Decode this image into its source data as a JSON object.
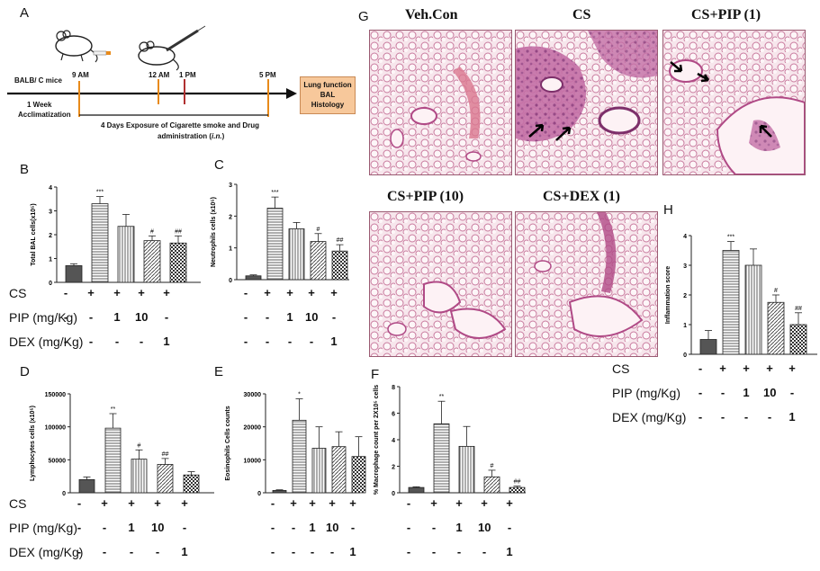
{
  "panels": {
    "A": "A",
    "B": "B",
    "C": "C",
    "D": "D",
    "E": "E",
    "F": "F",
    "G": "G",
    "H": "H"
  },
  "timeline": {
    "mouse_label": "BALB/ C mice",
    "t1": "9 AM",
    "t2": "12 AM",
    "t3": "1 PM",
    "t4": "5 PM",
    "week": "1 Week",
    "accl": "Acclimatization",
    "exposure_line1": "4 Days Exposure of Cigarette smoke and  Drug",
    "exposure_line2_a": "administration (",
    "exposure_line2_route": "i.n.",
    "exposure_line2_b": ")",
    "outcome_line1": "Lung function",
    "outcome_line2": "BAL",
    "outcome_line3": "Histology"
  },
  "conditions": {
    "cs": "CS",
    "pip": "PIP (mg/Kg)",
    "dex": "DEX (mg/Kg)",
    "cs_signs": [
      "-",
      "+",
      "+",
      "+",
      "+"
    ],
    "pip_signs": [
      "-",
      "-",
      "1",
      "10",
      "-"
    ],
    "dex_signs": [
      "-",
      "-",
      "-",
      "-",
      "1"
    ]
  },
  "histology": {
    "titles": [
      "Veh.Con",
      "CS",
      "CS+PIP (1)",
      "CS+PIP (10)",
      "CS+DEX (1)"
    ]
  },
  "colors": {
    "tissue": "#e9b8c8",
    "tissue_dark": "#b04a86",
    "arrow_orange": "#e88a1a",
    "arrow_red": "#b03030",
    "outcome_box": "#f7c89b"
  },
  "chart_data": [
    {
      "id": "B",
      "type": "bar",
      "ylabel": "Total BAL cells(x10⁵)",
      "ylim": [
        0,
        4
      ],
      "yticks": [
        "0",
        "1",
        "2",
        "3",
        "4"
      ],
      "values": [
        0.7,
        3.3,
        2.35,
        1.75,
        1.65
      ],
      "errors": [
        0.08,
        0.3,
        0.5,
        0.2,
        0.3
      ],
      "annotations": [
        "",
        "***",
        "",
        "#",
        "##"
      ]
    },
    {
      "id": "C",
      "type": "bar",
      "ylabel": "Neutrophils cells (x10⁵)",
      "ylim": [
        0,
        3
      ],
      "yticks": [
        "0",
        "1",
        "2",
        "3"
      ],
      "values": [
        0.12,
        2.25,
        1.6,
        1.2,
        0.9
      ],
      "errors": [
        0.03,
        0.35,
        0.2,
        0.25,
        0.2
      ],
      "annotations": [
        "",
        "***",
        "",
        "#",
        "##"
      ]
    },
    {
      "id": "D",
      "type": "bar",
      "ylabel": "Lymphocytes cells (x10⁵)",
      "ylim": [
        0,
        150000
      ],
      "yticks": [
        "0",
        "50000",
        "100000",
        "150000"
      ],
      "values": [
        20000,
        98000,
        51000,
        43000,
        27000
      ],
      "errors": [
        4000,
        22000,
        14000,
        9000,
        5000
      ],
      "annotations": [
        "",
        "**",
        "#",
        "##",
        ""
      ]
    },
    {
      "id": "E",
      "type": "bar",
      "ylabel": "Eosinophils Cells counts",
      "ylim": [
        0,
        30000
      ],
      "yticks": [
        "0",
        "10000",
        "20000",
        "30000"
      ],
      "values": [
        700,
        22000,
        13500,
        14000,
        11000
      ],
      "errors": [
        200,
        6500,
        6500,
        4500,
        6000
      ],
      "annotations": [
        "",
        "*",
        "",
        "",
        ""
      ]
    },
    {
      "id": "F",
      "type": "bar",
      "ylabel": "% Macrophage count per 2X10⁵ cells",
      "ylim": [
        0,
        8
      ],
      "yticks": [
        "0",
        "2",
        "4",
        "6",
        "8"
      ],
      "values": [
        0.4,
        5.2,
        3.5,
        1.2,
        0.4
      ],
      "errors": [
        0.05,
        1.7,
        1.5,
        0.5,
        0.1
      ],
      "annotations": [
        "",
        "**",
        "",
        "#",
        "##"
      ]
    },
    {
      "id": "H",
      "type": "bar",
      "ylabel": "Inflammation score",
      "ylim": [
        0,
        4
      ],
      "yticks": [
        "0",
        "1",
        "2",
        "3",
        "4"
      ],
      "values": [
        0.5,
        3.5,
        3.0,
        1.75,
        1.0
      ],
      "errors": [
        0.3,
        0.3,
        0.55,
        0.25,
        0.4
      ],
      "annotations": [
        "",
        "***",
        "",
        "#",
        "##"
      ]
    }
  ]
}
